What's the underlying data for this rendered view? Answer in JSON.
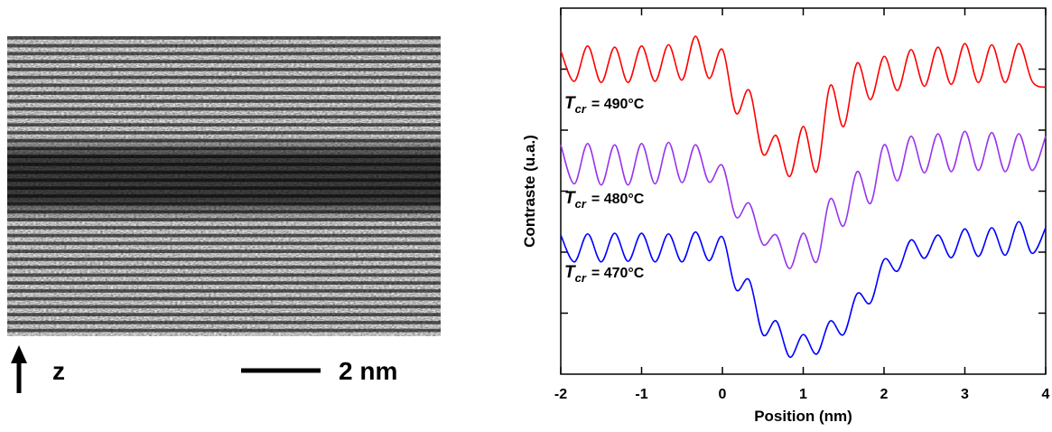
{
  "micrograph": {
    "axis_label": "z",
    "scale_label": "2 nm"
  },
  "chart_data": {
    "type": "line",
    "xlabel": "Position (nm)",
    "ylabel": "Contraste (u.a.)",
    "xlim": [
      -2,
      4
    ],
    "xticks": [
      -2,
      -1,
      0,
      1,
      2,
      3,
      4
    ],
    "ylim": [
      0,
      6
    ],
    "yticks": [
      1,
      2,
      3,
      4,
      5
    ],
    "x": [
      -2,
      -1.833,
      -1.667,
      -1.5,
      -1.333,
      -1.167,
      -1,
      -0.833,
      -0.667,
      -0.5,
      -0.333,
      -0.167,
      0,
      0.167,
      0.333,
      0.5,
      0.667,
      0.833,
      1,
      1.167,
      1.333,
      1.5,
      1.667,
      1.833,
      2,
      2.167,
      2.333,
      2.5,
      2.667,
      2.833,
      3,
      3.167,
      3.333,
      3.5,
      3.667,
      3.833,
      4
    ],
    "series": [
      {
        "color": "#ff0000",
        "values": [
          5.3,
          4.8,
          5.38,
          4.78,
          5.36,
          4.78,
          5.38,
          4.8,
          5.4,
          4.82,
          5.54,
          4.85,
          5.32,
          4.28,
          4.65,
          3.61,
          3.91,
          3.24,
          4.06,
          3.32,
          4.73,
          4.06,
          5.1,
          4.5,
          5.21,
          4.65,
          5.32,
          4.72,
          5.36,
          4.75,
          5.42,
          4.78,
          5.4,
          4.78,
          5.42,
          4.8,
          4.7
        ]
      },
      {
        "color": "#9933ee",
        "values": [
          3.76,
          3.12,
          3.78,
          3.1,
          3.76,
          3.1,
          3.78,
          3.12,
          3.8,
          3.14,
          3.76,
          3.15,
          3.42,
          2.58,
          2.8,
          2.13,
          2.28,
          1.73,
          2.31,
          1.84,
          2.87,
          2.43,
          3.32,
          2.8,
          3.76,
          3.17,
          3.9,
          3.3,
          3.94,
          3.32,
          3.98,
          3.34,
          3.96,
          3.32,
          3.94,
          3.34,
          3.9
        ]
      },
      {
        "color": "#0000ff",
        "values": [
          2.28,
          1.84,
          2.3,
          1.84,
          2.31,
          1.85,
          2.31,
          1.84,
          2.3,
          1.84,
          2.33,
          1.86,
          2.25,
          1.39,
          1.54,
          0.65,
          0.87,
          0.28,
          0.65,
          0.33,
          0.87,
          0.65,
          1.32,
          1.17,
          1.88,
          1.69,
          2.2,
          1.9,
          2.28,
          1.91,
          2.38,
          1.93,
          2.4,
          1.95,
          2.5,
          1.98,
          2.4
        ]
      }
    ],
    "annotations": [
      {
        "symbol": "T",
        "subscript": "cr",
        "text": "= 490°C"
      },
      {
        "symbol": "T",
        "subscript": "cr",
        "text": "= 480°C"
      },
      {
        "symbol": "T",
        "subscript": "cr",
        "text": "= 470°C"
      }
    ]
  }
}
